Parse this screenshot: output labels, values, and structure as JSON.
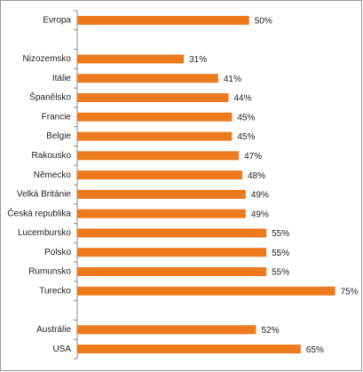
{
  "chart_data": {
    "type": "bar",
    "orientation": "horizontal",
    "categories": [
      "Evropa",
      null,
      "Nizozemsko",
      "Itálie",
      "Španělsko",
      "Francie",
      "Belgie",
      "Rakousko",
      "Německo",
      "Velká Británie",
      "Česká republika",
      "Lucembursko",
      "Polsko",
      "Rumunsko",
      "Turecko",
      null,
      "Austrálie",
      "USA"
    ],
    "values": [
      50,
      null,
      31,
      41,
      44,
      45,
      45,
      47,
      48,
      49,
      49,
      55,
      55,
      55,
      75,
      null,
      52,
      65
    ],
    "value_labels": [
      "50%",
      null,
      "31%",
      "41%",
      "44%",
      "45%",
      "45%",
      "47%",
      "48%",
      "49%",
      "49%",
      "55%",
      "55%",
      "55%",
      "75%",
      null,
      "52%",
      "65%"
    ],
    "color": "#ee7a1e",
    "xlim": [
      0,
      80
    ]
  }
}
